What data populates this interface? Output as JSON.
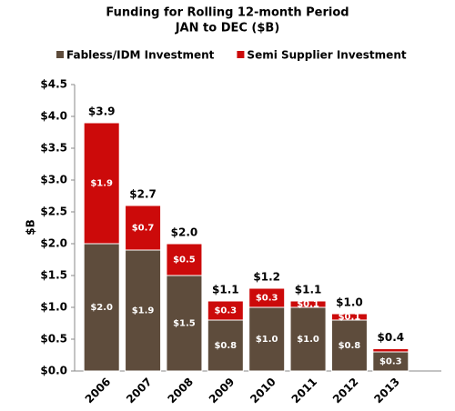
{
  "chart_data": {
    "type": "stacked-bar",
    "title": "Funding for Rolling 12-month Period",
    "subtitle": "JAN to DEC ($B)",
    "y_label": "$B",
    "categories": [
      "2006",
      "2007",
      "2008",
      "2009",
      "2010",
      "2011",
      "2012",
      "2013"
    ],
    "series": [
      {
        "name": "Fabless/IDM Investment",
        "color": "#5e4c3c",
        "values": [
          2.0,
          1.9,
          1.5,
          0.8,
          1.0,
          1.0,
          0.8,
          0.3
        ],
        "value_labels": [
          "$2.0",
          "$1.9",
          "$1.5",
          "$0.8",
          "$1.0",
          "$1.0",
          "$0.8",
          "$0.3"
        ]
      },
      {
        "name": "Semi Supplier Investment",
        "color": "#cc0a0a",
        "values": [
          1.9,
          0.7,
          0.5,
          0.3,
          0.3,
          0.1,
          0.1,
          0.05
        ],
        "value_labels": [
          "$1.9",
          "$0.7",
          "$0.5",
          "$0.3",
          "$0.3",
          "$0.1",
          "$0.1",
          null
        ]
      }
    ],
    "totals": {
      "values": [
        3.9,
        2.7,
        2.0,
        1.1,
        1.2,
        1.1,
        1.0,
        0.4
      ],
      "value_labels": [
        "$3.9",
        "$2.7",
        "$2.0",
        "$1.1",
        "$1.2",
        "$1.1",
        "$1.0",
        "$0.4"
      ]
    },
    "ylim": [
      0,
      4.5
    ],
    "yticks": [
      {
        "value": 0,
        "label": "$0.0"
      },
      {
        "value": 0.5,
        "label": "$0.5"
      },
      {
        "value": 1,
        "label": "$1.0"
      },
      {
        "value": 1.5,
        "label": "$1.5"
      },
      {
        "value": 2,
        "label": "$2.0"
      },
      {
        "value": 2.5,
        "label": "$2.5"
      },
      {
        "value": 3,
        "label": "$3.0"
      },
      {
        "value": 3.5,
        "label": "$3.5"
      },
      {
        "value": 4,
        "label": "$4.0"
      },
      {
        "value": 4.5,
        "label": "$4.5"
      }
    ],
    "grid": false,
    "legend": "top"
  }
}
